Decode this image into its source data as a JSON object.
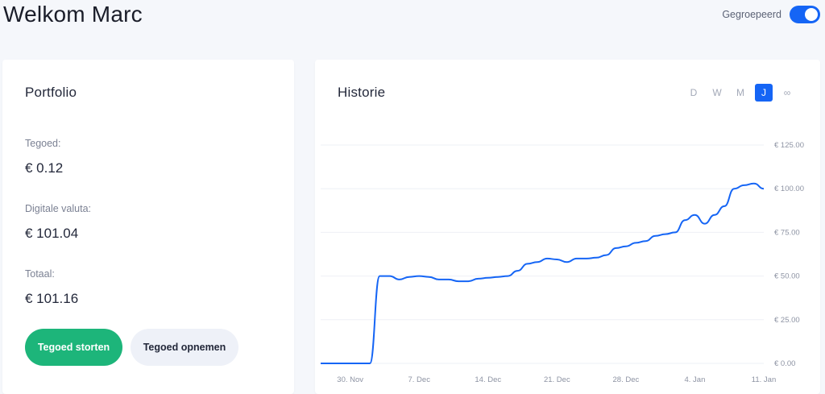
{
  "header": {
    "greeting": "Welkom Marc",
    "toggle_label": "Gegroepeerd",
    "toggle_on": true,
    "accent_color": "#1565f5"
  },
  "portfolio": {
    "title": "Portfolio",
    "fields": [
      {
        "label": "Tegoed:",
        "value": "€ 0.12"
      },
      {
        "label": "Digitale valuta:",
        "value": "€ 101.04"
      },
      {
        "label": "Totaal:",
        "value": "€ 101.16"
      }
    ],
    "deposit_button": "Tegoed storten",
    "withdraw_button": "Tegoed opnemen",
    "deposit_color": "#1db57a"
  },
  "history": {
    "title": "Historie",
    "ranges": [
      "D",
      "W",
      "M",
      "J",
      "∞"
    ],
    "active_range": "J"
  },
  "chart_data": {
    "type": "line",
    "title": "",
    "xlabel": "",
    "ylabel": "",
    "x_ticks": [
      "30. Nov",
      "7. Dec",
      "14. Dec",
      "21. Dec",
      "28. Dec",
      "4. Jan",
      "11. Jan"
    ],
    "y_ticks": [
      "€ 0.00",
      "€ 25.00",
      "€ 50.00",
      "€ 75.00",
      "€ 100.00",
      "€ 125.00"
    ],
    "ylim": [
      0,
      125
    ],
    "xlim": [
      "2020-11-27",
      "2021-01-11"
    ],
    "grid": true,
    "series": [
      {
        "color": "#1565f5",
        "x": [
          "2020-11-27",
          "2020-11-28",
          "2020-11-29",
          "2020-11-30",
          "2020-12-01",
          "2020-12-02",
          "2020-12-03",
          "2020-12-04",
          "2020-12-05",
          "2020-12-06",
          "2020-12-07",
          "2020-12-08",
          "2020-12-09",
          "2020-12-10",
          "2020-12-11",
          "2020-12-12",
          "2020-12-13",
          "2020-12-14",
          "2020-12-15",
          "2020-12-16",
          "2020-12-17",
          "2020-12-18",
          "2020-12-19",
          "2020-12-20",
          "2020-12-21",
          "2020-12-22",
          "2020-12-23",
          "2020-12-24",
          "2020-12-25",
          "2020-12-26",
          "2020-12-27",
          "2020-12-28",
          "2020-12-29",
          "2020-12-30",
          "2020-12-31",
          "2021-01-01",
          "2021-01-02",
          "2021-01-03",
          "2021-01-04",
          "2021-01-05",
          "2021-01-06",
          "2021-01-07",
          "2021-01-08",
          "2021-01-09",
          "2021-01-10",
          "2021-01-11"
        ],
        "y": [
          0,
          0,
          0,
          0,
          0,
          0,
          50,
          50,
          48,
          49.5,
          50,
          49.5,
          48,
          48,
          47,
          47,
          48.5,
          49,
          49.5,
          50,
          53,
          57,
          58,
          60,
          59.5,
          58,
          60,
          60,
          60.5,
          62,
          66,
          67,
          69,
          70,
          73,
          74,
          75,
          82,
          85,
          80,
          85,
          90,
          100,
          102,
          103,
          100
        ]
      }
    ]
  }
}
